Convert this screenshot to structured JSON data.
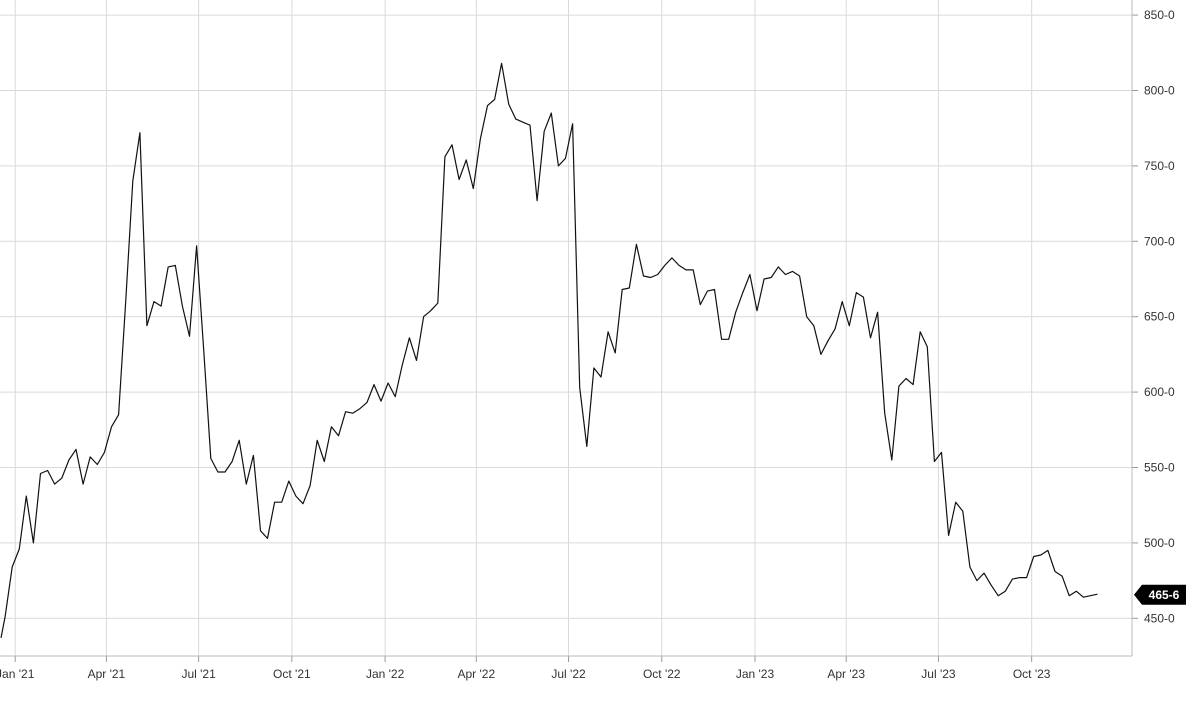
{
  "chart_data": {
    "type": "line",
    "title": "",
    "xlabel": "",
    "ylabel": "",
    "grid": true,
    "colors": {
      "line": "#111111",
      "grid": "#d9d9d9",
      "axis_text": "#333333",
      "badge_bg": "#000000",
      "badge_text": "#ffffff"
    },
    "x_range": [
      "2020-12-17",
      "2024-01-08"
    ],
    "y_range": [
      425,
      860
    ],
    "y_ticks": [
      {
        "value": 450,
        "label": "450-0"
      },
      {
        "value": 500,
        "label": "500-0"
      },
      {
        "value": 550,
        "label": "550-0"
      },
      {
        "value": 600,
        "label": "600-0"
      },
      {
        "value": 650,
        "label": "650-0"
      },
      {
        "value": 700,
        "label": "700-0"
      },
      {
        "value": 750,
        "label": "750-0"
      },
      {
        "value": 800,
        "label": "800-0"
      },
      {
        "value": 850,
        "label": "850-0"
      }
    ],
    "x_ticks": [
      {
        "date": "2021-01-01",
        "label": "Jan '21"
      },
      {
        "date": "2021-04-01",
        "label": "Apr '21"
      },
      {
        "date": "2021-07-01",
        "label": "Jul '21"
      },
      {
        "date": "2021-10-01",
        "label": "Oct '21"
      },
      {
        "date": "2022-01-01",
        "label": "Jan '22"
      },
      {
        "date": "2022-04-01",
        "label": "Apr '22"
      },
      {
        "date": "2022-07-01",
        "label": "Jul '22"
      },
      {
        "date": "2022-10-01",
        "label": "Oct '22"
      },
      {
        "date": "2023-01-01",
        "label": "Jan '23"
      },
      {
        "date": "2023-04-01",
        "label": "Apr '23"
      },
      {
        "date": "2023-07-01",
        "label": "Jul '23"
      },
      {
        "date": "2023-10-01",
        "label": "Oct '23"
      }
    ],
    "last_value_label": "465-6",
    "last_value": 465.6,
    "series": [
      {
        "x": [
          "2020-12-18",
          "2020-12-22",
          "2020-12-29",
          "2021-01-05",
          "2021-01-12",
          "2021-01-19",
          "2021-01-26",
          "2021-02-02",
          "2021-02-09",
          "2021-02-16",
          "2021-02-23",
          "2021-03-02",
          "2021-03-09",
          "2021-03-16",
          "2021-03-23",
          "2021-03-30",
          "2021-04-06",
          "2021-04-13",
          "2021-04-20",
          "2021-04-27",
          "2021-05-04",
          "2021-05-11",
          "2021-05-18",
          "2021-05-25",
          "2021-06-01",
          "2021-06-08",
          "2021-06-15",
          "2021-06-22",
          "2021-06-29",
          "2021-07-06",
          "2021-07-13",
          "2021-07-20",
          "2021-07-27",
          "2021-08-03",
          "2021-08-10",
          "2021-08-17",
          "2021-08-24",
          "2021-08-31",
          "2021-09-07",
          "2021-09-14",
          "2021-09-21",
          "2021-09-28",
          "2021-10-05",
          "2021-10-12",
          "2021-10-19",
          "2021-10-26",
          "2021-11-02",
          "2021-11-09",
          "2021-11-16",
          "2021-11-23",
          "2021-11-30",
          "2021-12-07",
          "2021-12-14",
          "2021-12-21",
          "2021-12-28",
          "2022-01-04",
          "2022-01-11",
          "2022-01-18",
          "2022-01-25",
          "2022-02-01",
          "2022-02-08",
          "2022-02-15",
          "2022-02-22",
          "2022-03-01",
          "2022-03-08",
          "2022-03-15",
          "2022-03-22",
          "2022-03-29",
          "2022-04-05",
          "2022-04-12",
          "2022-04-19",
          "2022-04-26",
          "2022-05-03",
          "2022-05-10",
          "2022-05-17",
          "2022-05-24",
          "2022-05-31",
          "2022-06-07",
          "2022-06-14",
          "2022-06-21",
          "2022-06-28",
          "2022-07-05",
          "2022-07-12",
          "2022-07-19",
          "2022-07-26",
          "2022-08-02",
          "2022-08-09",
          "2022-08-16",
          "2022-08-23",
          "2022-08-30",
          "2022-09-06",
          "2022-09-13",
          "2022-09-20",
          "2022-09-27",
          "2022-10-04",
          "2022-10-11",
          "2022-10-18",
          "2022-10-25",
          "2022-11-01",
          "2022-11-08",
          "2022-11-15",
          "2022-11-22",
          "2022-11-29",
          "2022-12-06",
          "2022-12-13",
          "2022-12-20",
          "2022-12-27",
          "2023-01-03",
          "2023-01-10",
          "2023-01-17",
          "2023-01-24",
          "2023-01-31",
          "2023-02-07",
          "2023-02-14",
          "2023-02-21",
          "2023-02-28",
          "2023-03-07",
          "2023-03-14",
          "2023-03-21",
          "2023-03-28",
          "2023-04-04",
          "2023-04-11",
          "2023-04-18",
          "2023-04-25",
          "2023-05-02",
          "2023-05-09",
          "2023-05-16",
          "2023-05-23",
          "2023-05-30",
          "2023-06-06",
          "2023-06-13",
          "2023-06-20",
          "2023-06-27",
          "2023-07-04",
          "2023-07-11",
          "2023-07-18",
          "2023-07-25",
          "2023-08-01",
          "2023-08-08",
          "2023-08-15",
          "2023-08-22",
          "2023-08-29",
          "2023-09-05",
          "2023-09-12",
          "2023-09-19",
          "2023-09-26",
          "2023-10-03",
          "2023-10-10",
          "2023-10-17",
          "2023-10-24",
          "2023-10-31",
          "2023-11-07",
          "2023-11-14",
          "2023-11-21",
          "2023-11-28",
          "2023-12-05"
        ],
        "values": [
          437,
          451,
          484,
          496,
          531,
          500,
          546,
          548,
          539,
          543,
          555,
          562,
          539,
          557,
          552,
          560,
          577,
          585,
          660,
          740,
          772,
          644,
          660,
          657,
          683,
          684,
          657,
          637,
          697,
          628,
          556,
          547,
          547,
          554,
          568,
          539,
          558,
          508,
          503,
          527,
          527,
          541,
          531,
          526,
          538,
          568,
          554,
          577,
          571,
          587,
          586,
          589,
          593,
          605,
          594,
          606,
          597,
          618,
          636,
          621,
          650,
          654,
          659,
          756,
          764,
          741,
          754,
          735,
          768,
          790,
          794,
          818,
          791,
          781,
          779,
          777,
          727,
          773,
          785,
          750,
          755,
          778,
          603,
          564,
          616,
          610,
          640,
          626,
          668,
          669,
          698,
          677,
          676,
          678,
          684,
          689,
          684,
          681,
          681,
          658,
          667,
          668,
          635,
          635,
          653,
          666,
          678,
          654,
          675,
          676,
          683,
          678,
          680,
          677,
          650,
          644,
          625,
          634,
          642,
          660,
          644,
          666,
          663,
          636,
          653,
          586,
          555,
          604,
          609,
          605,
          640,
          630,
          554,
          560,
          505,
          527,
          521,
          484,
          475,
          480,
          472,
          465,
          468,
          476,
          477,
          477,
          491,
          492,
          495,
          481,
          478,
          465,
          468,
          464,
          465,
          466
        ],
        "color": "#111111"
      }
    ]
  }
}
